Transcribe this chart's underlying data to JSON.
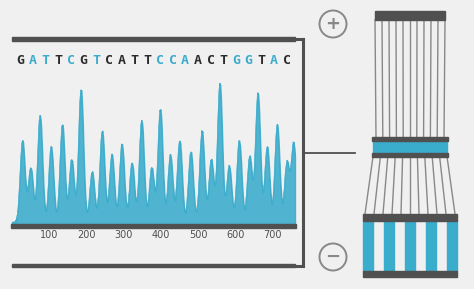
{
  "bg_color": "#f0f0f0",
  "blue": "#3aaccc",
  "dark_gray": "#505050",
  "mid_gray": "#888888",
  "light_gray": "#cccccc",
  "dna_sequence": [
    {
      "char": "G",
      "color": "#2b2b2b"
    },
    {
      "char": "A",
      "color": "#3aaccc"
    },
    {
      "char": "T",
      "color": "#3aaccc"
    },
    {
      "char": "T",
      "color": "#2b2b2b"
    },
    {
      "char": "C",
      "color": "#3aaccc"
    },
    {
      "char": "G",
      "color": "#2b2b2b"
    },
    {
      "char": "T",
      "color": "#3aaccc"
    },
    {
      "char": "C",
      "color": "#2b2b2b"
    },
    {
      "char": "A",
      "color": "#2b2b2b"
    },
    {
      "char": "T",
      "color": "#2b2b2b"
    },
    {
      "char": "T",
      "color": "#2b2b2b"
    },
    {
      "char": "C",
      "color": "#3aaccc"
    },
    {
      "char": "C",
      "color": "#3aaccc"
    },
    {
      "char": "A",
      "color": "#3aaccc"
    },
    {
      "char": "A",
      "color": "#2b2b2b"
    },
    {
      "char": "C",
      "color": "#2b2b2b"
    },
    {
      "char": "T",
      "color": "#2b2b2b"
    },
    {
      "char": "G",
      "color": "#3aaccc"
    },
    {
      "char": "G",
      "color": "#3aaccc"
    },
    {
      "char": "T",
      "color": "#2b2b2b"
    },
    {
      "char": "A",
      "color": "#3aaccc"
    },
    {
      "char": "C",
      "color": "#2b2b2b"
    }
  ],
  "xtick_labels": [
    "100",
    "200",
    "300",
    "400",
    "500",
    "600",
    "700"
  ],
  "xtick_positions": [
    100,
    200,
    300,
    400,
    500,
    600,
    700
  ],
  "peak_positions": [
    28,
    50,
    75,
    105,
    135,
    160,
    185,
    215,
    242,
    268,
    295,
    322,
    348,
    375,
    398,
    425,
    450,
    480,
    510,
    535,
    558,
    583,
    610,
    638,
    660,
    685,
    712,
    738,
    756
  ],
  "peak_heights": [
    0.52,
    0.35,
    0.68,
    0.48,
    0.62,
    0.4,
    0.85,
    0.32,
    0.58,
    0.43,
    0.5,
    0.38,
    0.65,
    0.35,
    0.72,
    0.43,
    0.52,
    0.45,
    0.58,
    0.4,
    0.88,
    0.36,
    0.52,
    0.42,
    0.82,
    0.48,
    0.62,
    0.38,
    0.5
  ]
}
